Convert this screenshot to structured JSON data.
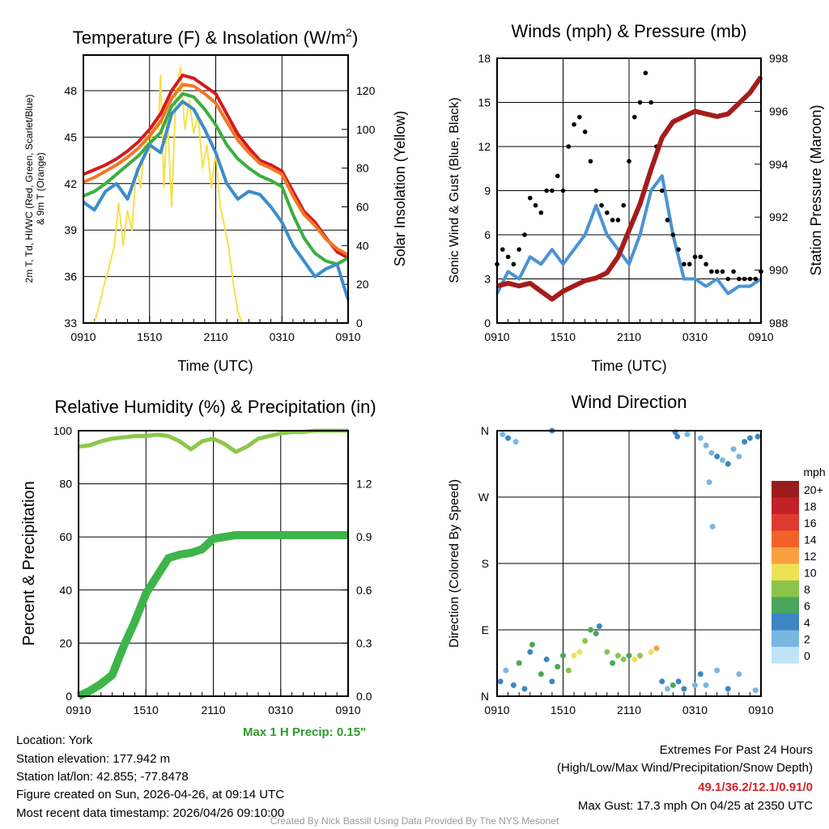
{
  "chart_data": [
    {
      "type": "line",
      "title": "Temperature (F) & Insolation (W/m2)",
      "title_main": "Temperature (F) & Insolation (W/m",
      "title_sup": "2",
      "title_end": ")",
      "xlabel": "Time (UTC)",
      "ylabel_line1": "2m T, Td, HI/WC (Red, Green, Scarlet/Blue)",
      "ylabel_line2": "& 9m T (Orange)",
      "y2label": "Solar Insolation (Yellow)",
      "x_ticks": [
        "0910",
        "1510",
        "2110",
        "0310",
        "0910"
      ],
      "xlim": [
        0,
        24
      ],
      "ylim": [
        33,
        50.3
      ],
      "y_ticks": [
        33,
        36,
        39,
        42,
        45,
        48
      ],
      "y2lim": [
        0,
        138.4
      ],
      "y2_ticks": [
        0,
        20,
        40,
        60,
        80,
        100,
        120
      ],
      "grid": true,
      "series": [
        {
          "name": "2m T",
          "color": "#d7191c",
          "values": [
            42.6,
            42.9,
            43.2,
            43.6,
            44.1,
            44.7,
            45.5,
            46.5,
            48.0,
            49.0,
            48.8,
            48.3,
            47.8,
            46.5,
            45.2,
            44.3,
            43.5,
            43.2,
            42.8,
            41.5,
            40.2,
            39.5,
            38.5,
            37.6,
            37.2
          ]
        },
        {
          "name": "9m T",
          "color": "#f07828",
          "values": [
            42.1,
            42.4,
            42.8,
            43.2,
            43.7,
            44.3,
            45.1,
            46.0,
            47.5,
            48.4,
            48.3,
            47.8,
            47.2,
            46.0,
            44.8,
            44.0,
            43.3,
            43.0,
            42.6,
            41.2,
            40.0,
            39.3,
            38.4,
            37.8,
            37.4
          ]
        },
        {
          "name": "Td",
          "color": "#3dae3f",
          "values": [
            41.2,
            41.5,
            42.0,
            42.6,
            43.2,
            43.8,
            44.6,
            45.3,
            47.0,
            47.8,
            47.6,
            46.8,
            45.8,
            44.5,
            43.6,
            43.0,
            42.5,
            42.2,
            41.8,
            40.0,
            38.5,
            37.5,
            37.0,
            36.8,
            37.2
          ]
        },
        {
          "name": "HI/WC",
          "color": "#3c8ccc",
          "values": [
            40.8,
            40.3,
            41.5,
            42.0,
            41.0,
            43.0,
            44.5,
            44.0,
            46.5,
            47.3,
            46.8,
            45.5,
            44.0,
            42.0,
            41.0,
            41.5,
            41.3,
            40.5,
            39.5,
            38.0,
            37.0,
            36.0,
            36.5,
            36.8,
            34.5
          ]
        }
      ],
      "y2_series": {
        "name": "Solar Insolation",
        "color": "#f7e04a",
        "points": [
          [
            0,
            0
          ],
          [
            1,
            0
          ],
          [
            1.3,
            6
          ],
          [
            1.8,
            18
          ],
          [
            2.3,
            28
          ],
          [
            2.8,
            40
          ],
          [
            3.2,
            62
          ],
          [
            3.6,
            40
          ],
          [
            4,
            58
          ],
          [
            4.4,
            48
          ],
          [
            4.8,
            80
          ],
          [
            5.2,
            70
          ],
          [
            5.6,
            96
          ],
          [
            6,
            88
          ],
          [
            6.4,
            104
          ],
          [
            6.8,
            100
          ],
          [
            7,
            128
          ],
          [
            7.3,
            70
          ],
          [
            7.6,
            108
          ],
          [
            8,
            60
          ],
          [
            8.4,
            120
          ],
          [
            8.8,
            132
          ],
          [
            9.2,
            100
          ],
          [
            9.6,
            115
          ],
          [
            10,
            98
          ],
          [
            10.4,
            108
          ],
          [
            10.8,
            80
          ],
          [
            11.2,
            92
          ],
          [
            11.6,
            70
          ],
          [
            12,
            88
          ],
          [
            12.4,
            60
          ],
          [
            12.8,
            50
          ],
          [
            13.2,
            38
          ],
          [
            13.6,
            20
          ],
          [
            14,
            6
          ],
          [
            14.4,
            0
          ],
          [
            24,
            0
          ]
        ]
      }
    },
    {
      "type": "line",
      "title": "Winds (mph) & Pressure (mb)",
      "xlabel": "Time (UTC)",
      "ylabel": "Sonic Wind & Gust (Blue, Black)",
      "y2label": "Station Pressure (Maroon)",
      "x_ticks": [
        "0910",
        "1510",
        "2110",
        "0310",
        "0910"
      ],
      "xlim": [
        0,
        24
      ],
      "ylim": [
        0,
        18
      ],
      "y_ticks": [
        0,
        3,
        6,
        9,
        12,
        15,
        18
      ],
      "y2lim": [
        988,
        998
      ],
      "y2_ticks": [
        988,
        990,
        992,
        994,
        996,
        998
      ],
      "grid": true,
      "wind": {
        "name": "Sonic Wind",
        "color": "#4a93d4",
        "values": [
          2,
          3.5,
          3,
          4.5,
          4,
          5,
          4,
          5,
          6,
          8,
          6,
          5,
          4,
          6,
          9,
          10,
          6,
          3,
          3,
          2.5,
          3,
          2,
          2.5,
          2.5,
          3
        ]
      },
      "gust": {
        "name": "Gust",
        "color": "#000000",
        "values": [
          4,
          5,
          4.5,
          4,
          5,
          6,
          8.5,
          8,
          7.5,
          9,
          9,
          10,
          9,
          12,
          13.5,
          14,
          13,
          11,
          9,
          8,
          7.5,
          7,
          7,
          8,
          11,
          14,
          15,
          17,
          15,
          12,
          9,
          7,
          6,
          5,
          4,
          4,
          4.5,
          4.5,
          4,
          3.5,
          3.5,
          3.5,
          3,
          3.5,
          3,
          3,
          3,
          3,
          3.5
        ]
      },
      "pressure": {
        "name": "Station Pressure",
        "color": "#a51c1c",
        "values": [
          989.4,
          989.5,
          989.4,
          989.5,
          989.2,
          988.9,
          989.2,
          989.4,
          989.6,
          989.7,
          989.9,
          990.5,
          991.5,
          992.5,
          993.8,
          995.0,
          995.6,
          995.8,
          996.0,
          995.9,
          995.8,
          995.9,
          996.3,
          996.7,
          997.3
        ]
      }
    },
    {
      "type": "line",
      "title": "Relative Humidity (%) & Precipitation (in)",
      "ylabel": "Percent & Precipitation",
      "x_ticks": [
        "0910",
        "1510",
        "2110",
        "0310",
        "0910"
      ],
      "xlim": [
        0,
        24
      ],
      "ylim": [
        0,
        100
      ],
      "y_ticks": [
        0,
        20,
        40,
        60,
        80,
        100
      ],
      "y2lim": [
        0,
        1.5
      ],
      "y2_ticks": [
        "0.0",
        "0.3",
        "0.6",
        "0.9",
        "1.2"
      ],
      "grid": true,
      "rh": {
        "name": "Relative Humidity",
        "color": "#8cc84b",
        "values": [
          94,
          94.5,
          96,
          97,
          97.5,
          98,
          98,
          98.5,
          98,
          96,
          93,
          96,
          97,
          95,
          92,
          94,
          97,
          98,
          99,
          99.5,
          99.5,
          100,
          100,
          100,
          100
        ]
      },
      "precip": {
        "name": "Precipitation",
        "color": "#3db54a",
        "values": [
          0,
          0.03,
          0.07,
          0.12,
          0.28,
          0.42,
          0.58,
          0.68,
          0.78,
          0.8,
          0.81,
          0.83,
          0.89,
          0.9,
          0.91,
          0.91,
          0.91,
          0.91,
          0.91,
          0.91,
          0.91,
          0.91,
          0.91,
          0.91,
          0.91
        ]
      },
      "annotation": "Max 1 H Precip: 0.15\""
    },
    {
      "type": "scatter",
      "title": "Wind Direction",
      "ylabel": "Direction (Colored By Speed)",
      "x_ticks": [
        "0910",
        "1510",
        "2110",
        "0310",
        "0910"
      ],
      "xlim": [
        0,
        24
      ],
      "ylim": [
        0,
        360
      ],
      "y_ticks": [
        "N",
        "E",
        "S",
        "W",
        "N"
      ],
      "grid": true,
      "points": [
        [
          0.3,
          20,
          3
        ],
        [
          0.8,
          35,
          2
        ],
        [
          1.5,
          15,
          4
        ],
        [
          2,
          45,
          5
        ],
        [
          2.5,
          10,
          3
        ],
        [
          3,
          60,
          4
        ],
        [
          3.2,
          70,
          5
        ],
        [
          4,
          30,
          6
        ],
        [
          4.5,
          50,
          4
        ],
        [
          5,
          20,
          3
        ],
        [
          5.5,
          40,
          6
        ],
        [
          6,
          55,
          5
        ],
        [
          6.5,
          35,
          7
        ],
        [
          7,
          55,
          9
        ],
        [
          7.5,
          60,
          10
        ],
        [
          8,
          75,
          8
        ],
        [
          8.5,
          90,
          5
        ],
        [
          9,
          85,
          6
        ],
        [
          9.3,
          95,
          4
        ],
        [
          10,
          60,
          7
        ],
        [
          10.5,
          45,
          6
        ],
        [
          11,
          55,
          8
        ],
        [
          11.5,
          50,
          7
        ],
        [
          12,
          55,
          6
        ],
        [
          12.5,
          50,
          9
        ],
        [
          13,
          55,
          7
        ],
        [
          14,
          60,
          10
        ],
        [
          14.5,
          65,
          11
        ],
        [
          15,
          20,
          3
        ],
        [
          15.5,
          10,
          2
        ],
        [
          16,
          15,
          5
        ],
        [
          16.5,
          20,
          4
        ],
        [
          17,
          10,
          3
        ],
        [
          18,
          15,
          2
        ],
        [
          18.5,
          30,
          3
        ],
        [
          19,
          15,
          2
        ],
        [
          20,
          35,
          2
        ],
        [
          21,
          10,
          3
        ],
        [
          22,
          30,
          2
        ],
        [
          23.5,
          8,
          2
        ],
        [
          0.5,
          355,
          2
        ],
        [
          1,
          350,
          3
        ],
        [
          1.7,
          345,
          1
        ],
        [
          5,
          360,
          4
        ],
        [
          16.2,
          358,
          4
        ],
        [
          16.4,
          352,
          3
        ],
        [
          17.3,
          355,
          2
        ],
        [
          18.5,
          350,
          1
        ],
        [
          19,
          340,
          1
        ],
        [
          19.5,
          330,
          2
        ],
        [
          20,
          325,
          3
        ],
        [
          20.5,
          320,
          2
        ],
        [
          21,
          315,
          3
        ],
        [
          21.5,
          335,
          2
        ],
        [
          22,
          325,
          2
        ],
        [
          22.5,
          345,
          3
        ],
        [
          23,
          350,
          3
        ],
        [
          23.7,
          352,
          3
        ],
        [
          19.3,
          290,
          2
        ],
        [
          19.6,
          230,
          2
        ]
      ],
      "legend": {
        "title": "mph",
        "placement": "right",
        "labels": [
          "20+",
          "18",
          "16",
          "14",
          "12",
          "10",
          "8",
          "6",
          "4",
          "2",
          "0"
        ],
        "colors": [
          "#9b1c1c",
          "#c42027",
          "#e03a2f",
          "#f0622a",
          "#f8a040",
          "#ece256",
          "#8cc44b",
          "#4aa65c",
          "#3d86c2",
          "#7ab6e2",
          "#bfe3f7"
        ]
      }
    }
  ],
  "info": {
    "location": "Location: York",
    "elevation": "Station elevation: 177.942 m",
    "latlon": "Station lat/lon: 42.855; -77.8478",
    "created": "Figure created on Sun, 2026-04-26, at 09:14 UTC",
    "recent": "Most recent data timestamp: 2026/04/26 09:10:00"
  },
  "extremes": {
    "title": "Extremes For Past 24 Hours",
    "subtitle": "(High/Low/Max Wind/Precipitation/Snow Depth)",
    "values": "49.1/36.2/12.1/0.91/0",
    "gust": "Max Gust: 17.3 mph On 04/25 at 2350 UTC"
  },
  "credit": "Created By Nick Bassill Using Data Provided By The NYS Mesonet"
}
